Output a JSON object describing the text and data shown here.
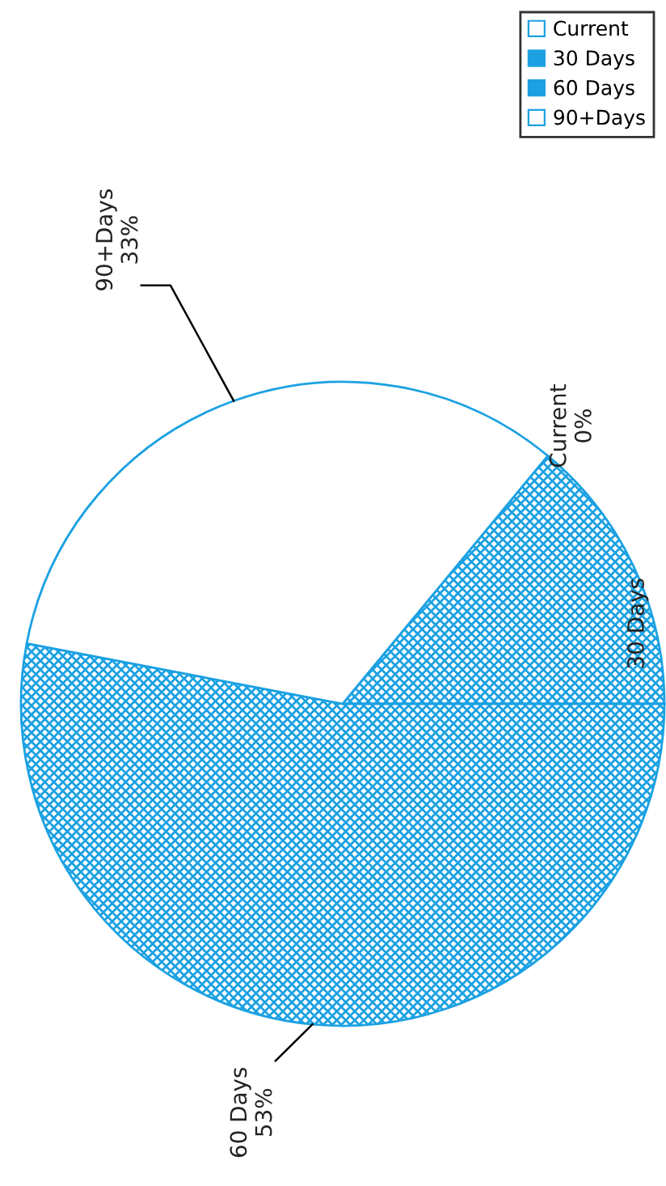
{
  "chart_data": {
    "type": "pie",
    "categories": [
      "Current",
      "30 Days",
      "60 Days",
      "90+Days"
    ],
    "values": [
      0,
      14,
      53,
      33
    ],
    "colors": [
      "#ffffff",
      "#1ba1e2",
      "#1ba1e2",
      "#ffffff"
    ],
    "value_labels": [
      "0%",
      null,
      "53%",
      "33%"
    ],
    "legend": "top right"
  }
}
